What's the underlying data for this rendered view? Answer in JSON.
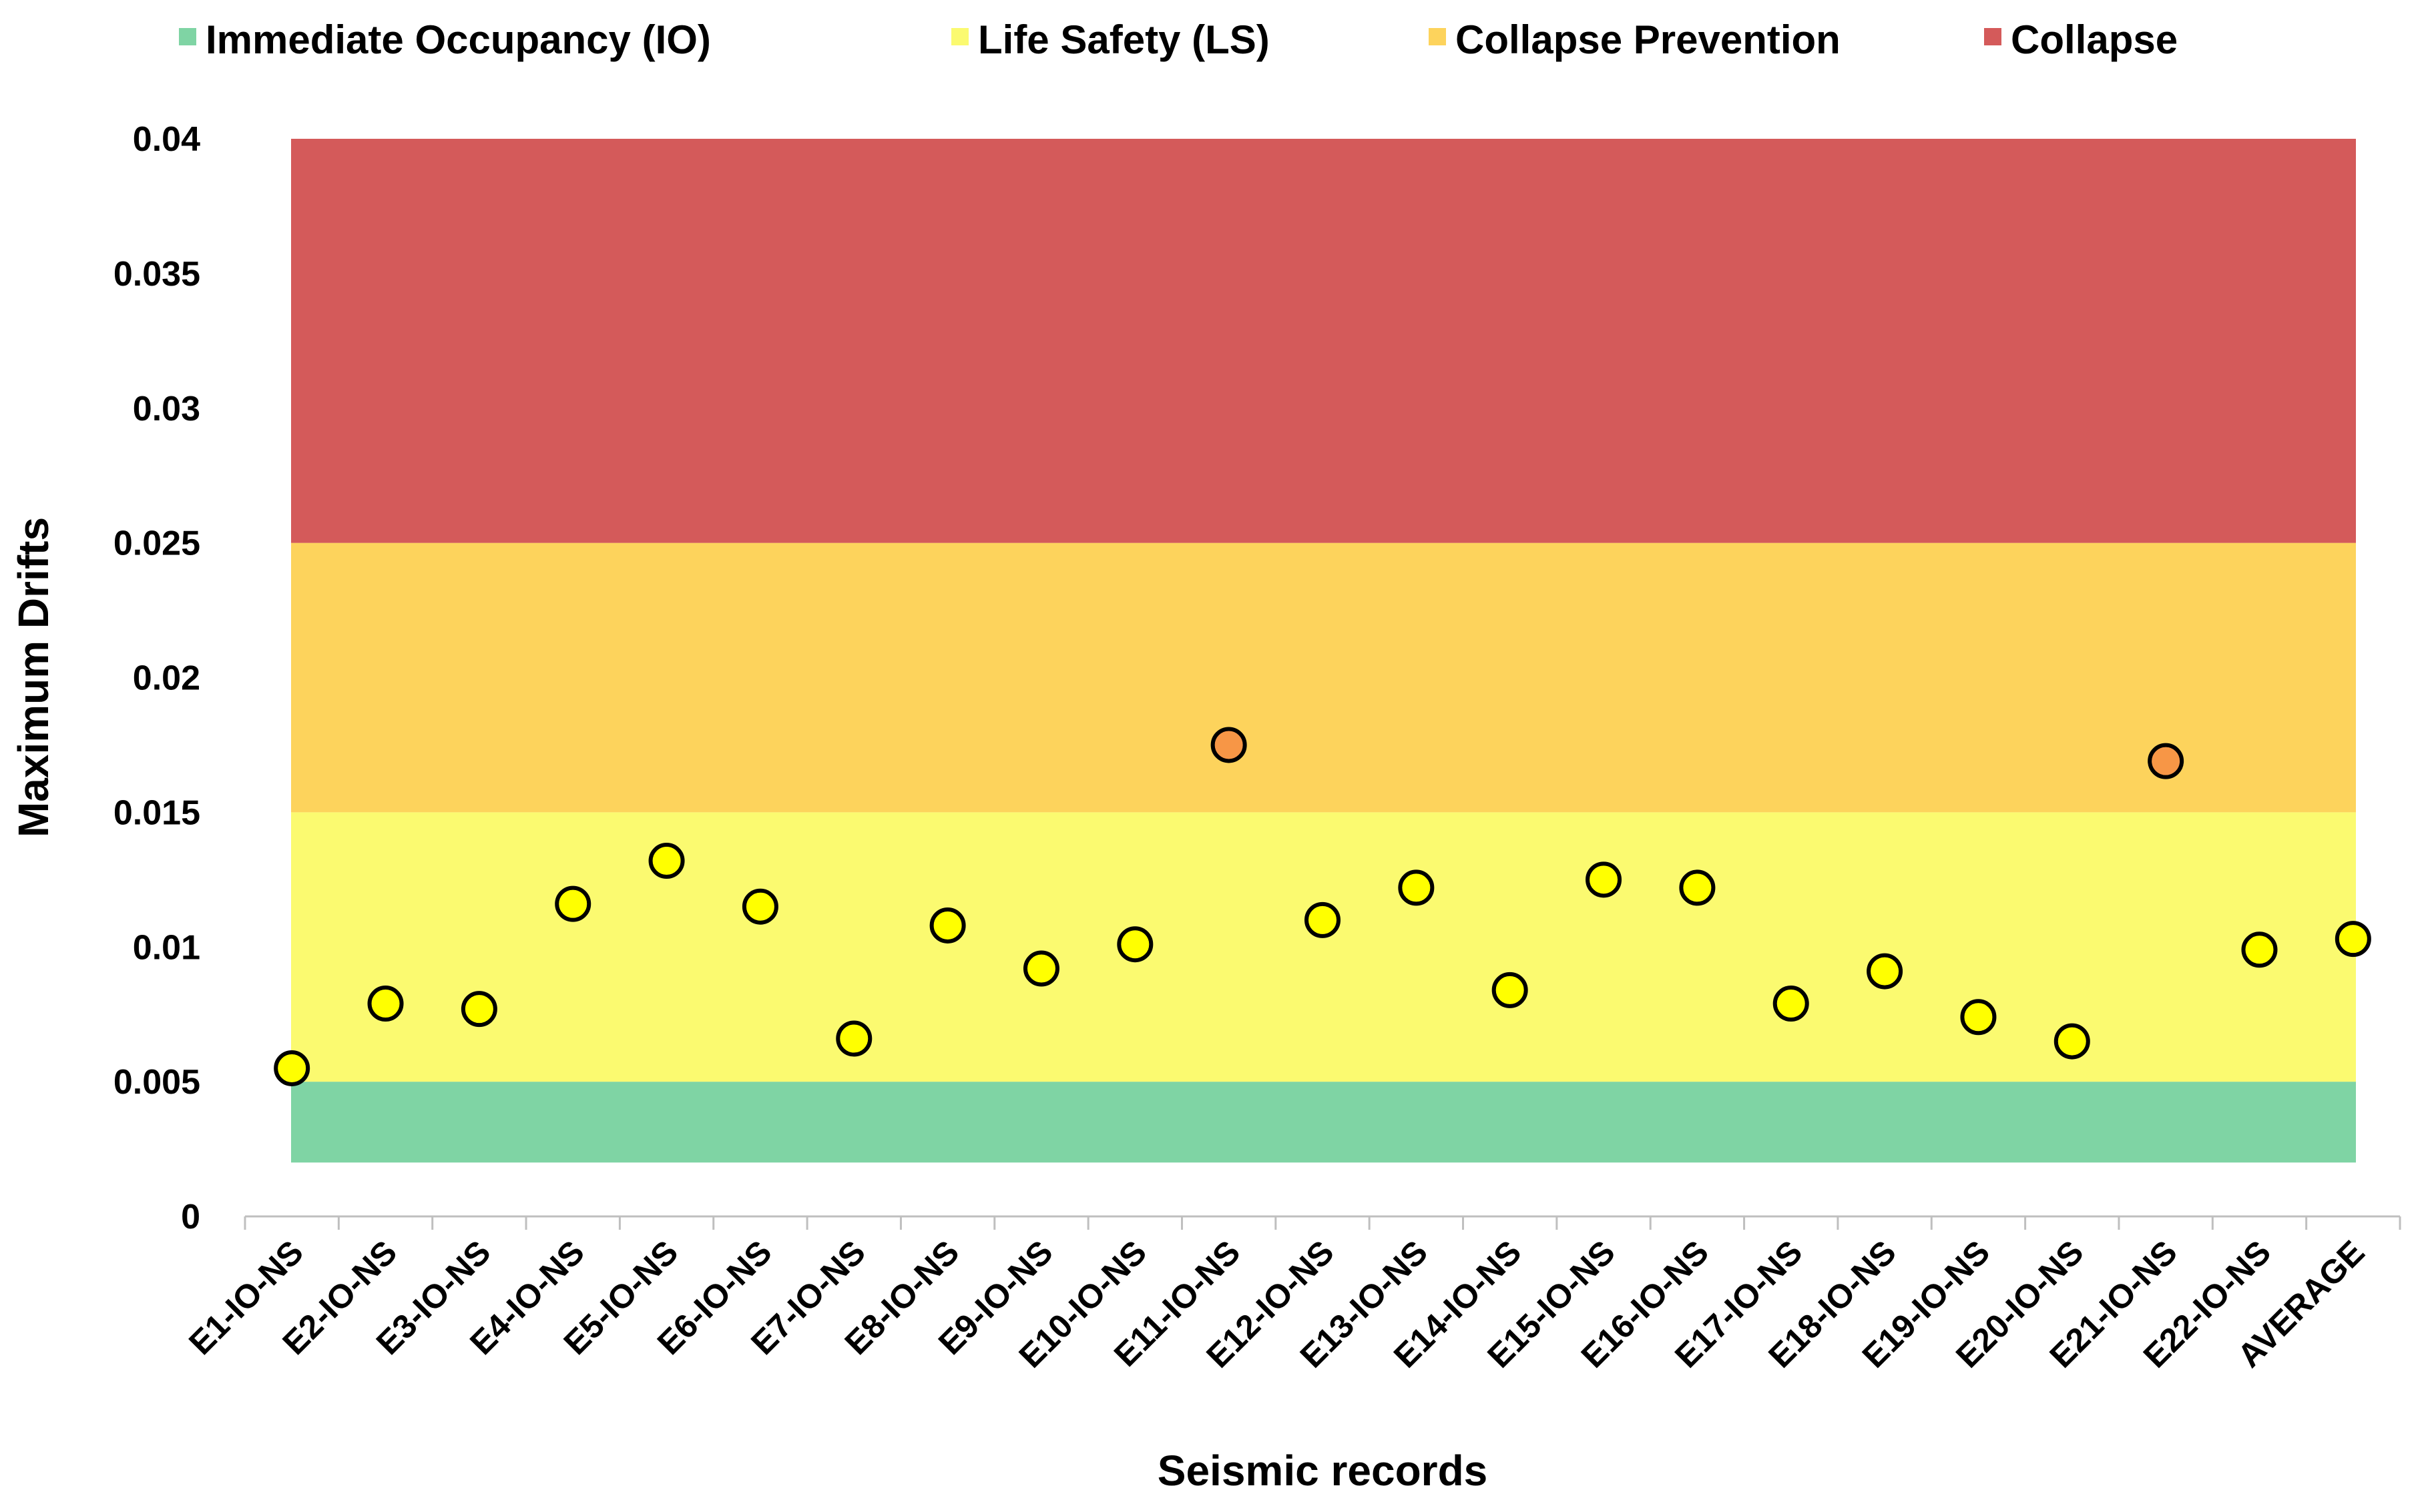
{
  "chart_data": {
    "type": "scatter",
    "title": "",
    "xlabel": "Seismic records",
    "ylabel": "Maximum Drifts",
    "ylim": [
      0,
      0.04
    ],
    "y_ticks": [
      "0",
      "0.005",
      "0.01",
      "0.015",
      "0.02",
      "0.025",
      "0.03",
      "0.035",
      "0.04"
    ],
    "y_tick_values": [
      0,
      0.005,
      0.01,
      0.015,
      0.02,
      0.025,
      0.03,
      0.035,
      0.04
    ],
    "grid": false,
    "legend_position": "top",
    "categories": [
      "E1-IO-NS",
      "E2-IO-NS",
      "E3-IO-NS",
      "E4-IO-NS",
      "E5-IO-NS",
      "E6-IO-NS",
      "E7-IO-NS",
      "E8-IO-NS",
      "E9-IO-NS",
      "E10-IO-NS",
      "E11-IO-NS",
      "E12-IO-NS",
      "E13-IO-NS",
      "E14-IO-NS",
      "E15-IO-NS",
      "E16-IO-NS",
      "E17-IO-NS",
      "E18-IO-NS",
      "E19-IO-NS",
      "E20-IO-NS",
      "E21-IO-NS",
      "E22-IO-NS",
      "AVERAGE"
    ],
    "values": [
      0.0055,
      0.0079,
      0.0077,
      0.0116,
      0.0132,
      0.0115,
      0.0066,
      0.0108,
      0.0092,
      0.0101,
      0.0175,
      0.011,
      0.0122,
      0.0084,
      0.0125,
      0.0122,
      0.0079,
      0.0091,
      0.0074,
      0.0065,
      0.0169,
      0.0099,
      0.0103
    ],
    "bands": [
      {
        "name": "Immediate Occupancy (IO)",
        "from": 0.002,
        "to": 0.005,
        "color": "#7fd4a4"
      },
      {
        "name": "Life Safety (LS)",
        "from": 0.005,
        "to": 0.015,
        "color": "#fbfa70"
      },
      {
        "name": "Collapse Prevention",
        "from": 0.015,
        "to": 0.025,
        "color": "#fdd35c"
      },
      {
        "name": "Collapse",
        "from": 0.025,
        "to": 0.04,
        "color": "#d45a5a"
      }
    ],
    "marker_colors": {
      "yellow": "#ffff00",
      "orange": "#f79646",
      "edge": "#000000"
    }
  }
}
